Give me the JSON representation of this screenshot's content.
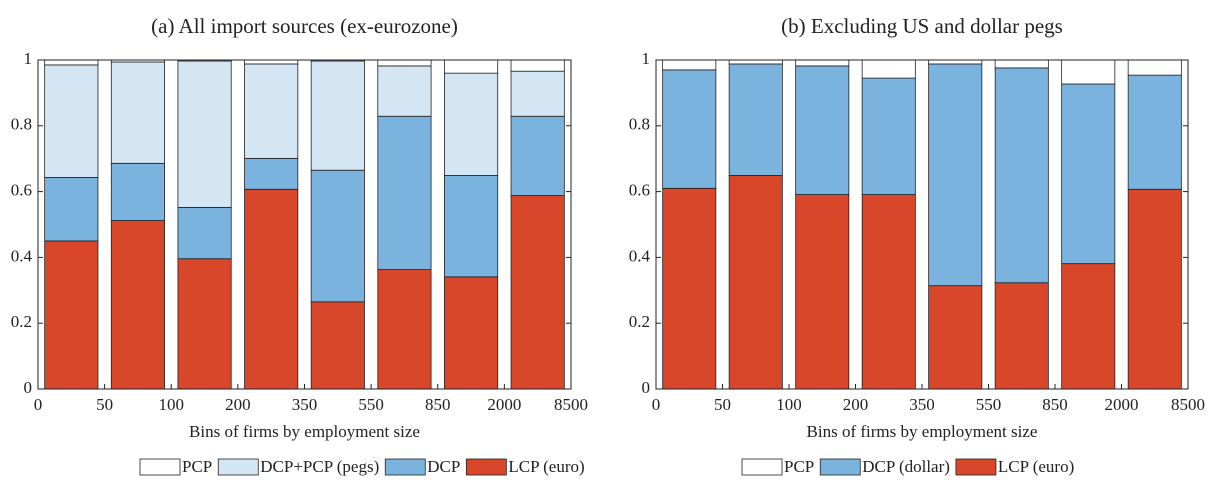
{
  "chart_data": [
    {
      "type": "stacked_bar",
      "title": "(a) All import sources (ex-eurozone)",
      "x_label": "Bins of firms by employment size",
      "bin_edges": [
        "0",
        "50",
        "100",
        "200",
        "350",
        "550",
        "850",
        "2000",
        "8500"
      ],
      "ylim": [
        0,
        1
      ],
      "yticks": [
        0,
        0.2,
        0.4,
        0.6,
        0.8,
        1
      ],
      "series": [
        {
          "name": "LCP (euro)",
          "color": "#d9472b",
          "values": [
            0.45,
            0.512,
            0.396,
            0.607,
            0.265,
            0.363,
            0.341,
            0.588
          ]
        },
        {
          "name": "DCP",
          "color": "#7ab3dd",
          "values": [
            0.193,
            0.174,
            0.156,
            0.094,
            0.4,
            0.466,
            0.308,
            0.241
          ]
        },
        {
          "name": "DCP+PCP (pegs)",
          "color": "#d4e6f3",
          "values": [
            0.342,
            0.308,
            0.445,
            0.287,
            0.332,
            0.153,
            0.311,
            0.137
          ]
        },
        {
          "name": "PCP",
          "color": "#ffffff",
          "values": [
            0.015,
            0.006,
            0.003,
            0.012,
            0.003,
            0.018,
            0.04,
            0.034
          ]
        }
      ]
    },
    {
      "type": "stacked_bar",
      "title": "(b) Excluding US and dollar pegs",
      "x_label": "Bins of firms by employment size",
      "bin_edges": [
        "0",
        "50",
        "100",
        "200",
        "350",
        "550",
        "850",
        "2000",
        "8500"
      ],
      "ylim": [
        0,
        1
      ],
      "yticks": [
        0,
        0.2,
        0.4,
        0.6,
        0.8,
        1
      ],
      "series": [
        {
          "name": "LCP (euro)",
          "color": "#d9472b",
          "values": [
            0.61,
            0.649,
            0.591,
            0.591,
            0.314,
            0.323,
            0.381,
            0.607
          ]
        },
        {
          "name": "DCP (dollar)",
          "color": "#7ab3dd",
          "values": [
            0.36,
            0.339,
            0.391,
            0.354,
            0.674,
            0.653,
            0.546,
            0.347
          ]
        },
        {
          "name": "PCP",
          "color": "#ffffff",
          "values": [
            0.03,
            0.012,
            0.018,
            0.055,
            0.012,
            0.024,
            0.073,
            0.046
          ]
        }
      ]
    }
  ]
}
